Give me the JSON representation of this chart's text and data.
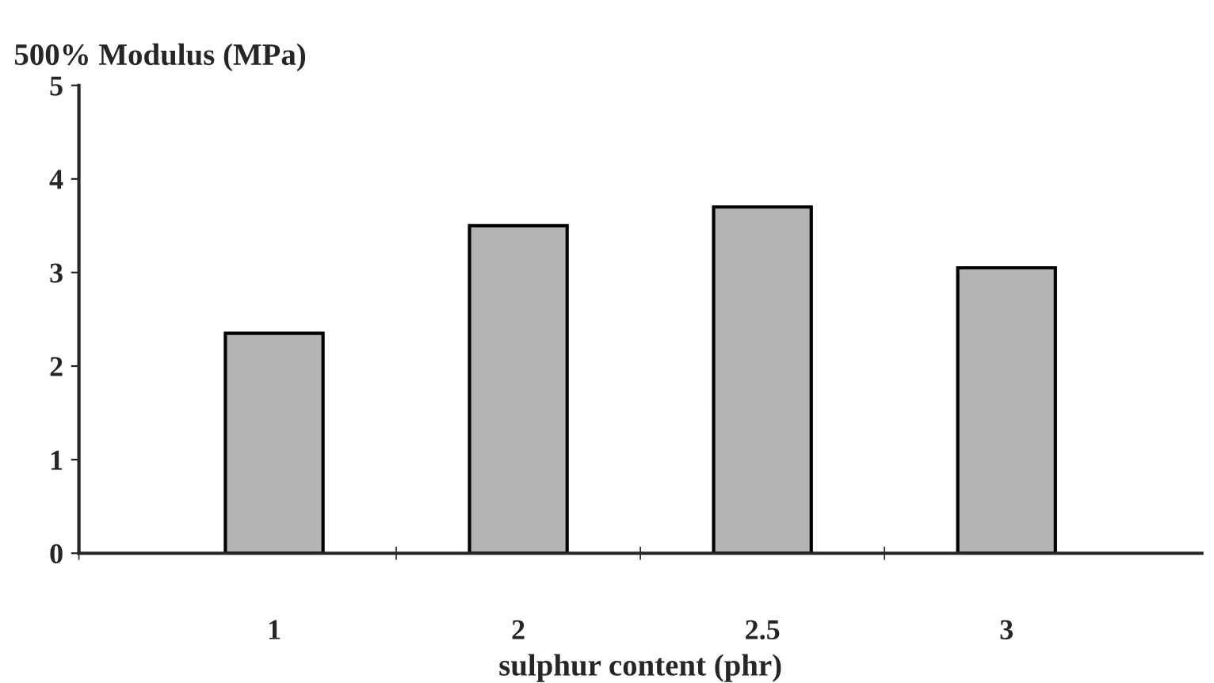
{
  "chart_data": {
    "type": "bar",
    "ylabel": "500% Modulus (MPa)",
    "xlabel": "sulphur content (phr)",
    "categories": [
      "1",
      "2",
      "2.5",
      "3"
    ],
    "values": [
      2.35,
      3.5,
      3.7,
      3.05
    ],
    "color": "#b4b4b4",
    "ylim": [
      0,
      5
    ],
    "yticks": [
      0,
      1,
      2,
      3,
      4,
      5
    ],
    "grid": false
  }
}
